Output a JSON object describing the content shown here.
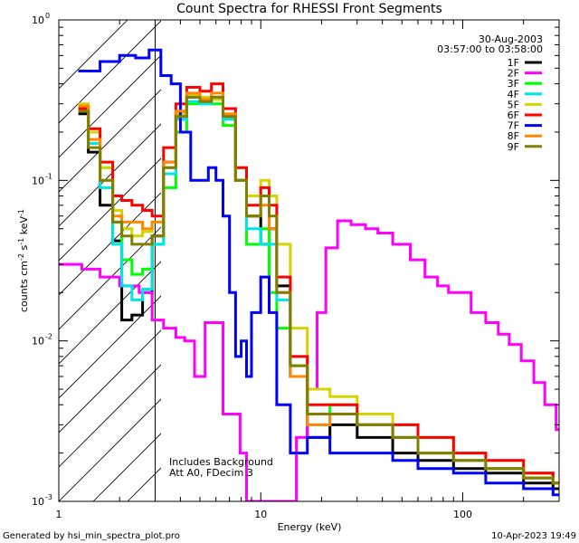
{
  "chart_data": {
    "type": "line",
    "title": "Count Spectra for RHESSI Front Segments",
    "xlabel": "Energy (keV)",
    "ylabel_html": "counts cm<tspan baseline-shift=\"super\" font-size=\"8\">-2</tspan> s<tspan baseline-shift=\"super\" font-size=\"8\">-1</tspan> keV<tspan baseline-shift=\"super\" font-size=\"8\">-1</tspan>",
    "x_scale": "log",
    "y_scale": "log",
    "xlim": [
      1,
      300
    ],
    "ylim": [
      0.001,
      1
    ],
    "x_ticks": [
      {
        "v": 1,
        "label": "1"
      },
      {
        "v": 10,
        "label": "10"
      },
      {
        "v": 100,
        "label": "100"
      }
    ],
    "y_ticks": [
      {
        "v": 1,
        "base": "10",
        "exp": "0"
      },
      {
        "v": 0.1,
        "base": "10",
        "exp": "-1"
      },
      {
        "v": 0.01,
        "base": "10",
        "exp": "-2"
      },
      {
        "v": 0.001,
        "base": "10",
        "exp": "-3"
      }
    ],
    "shaded_region": {
      "x_from": 1,
      "x_to": 3,
      "style": "hatched"
    },
    "annotations": {
      "date": "30-Aug-2003",
      "time_range": "03:57:00 to 03:58:00",
      "note_line1": "Includes Background",
      "note_line2": "Att A0, FDecim 3"
    },
    "footer_left": "Generated by hsi_min_spectra_plot.pro",
    "footer_right": "10-Apr-2023 19:49",
    "legend_position": "top-right",
    "series": [
      {
        "name": "1F",
        "color": "#000000",
        "points": [
          [
            1.25,
            0.26
          ],
          [
            1.4,
            0.15
          ],
          [
            1.6,
            0.07
          ],
          [
            1.85,
            0.042
          ],
          [
            2.05,
            0.0135
          ],
          [
            2.3,
            0.0145
          ],
          [
            2.6,
            0.02
          ],
          [
            2.9,
            0.045
          ],
          [
            3.3,
            0.13
          ],
          [
            3.8,
            0.26
          ],
          [
            4.3,
            0.33
          ],
          [
            5.0,
            0.32
          ],
          [
            5.7,
            0.33
          ],
          [
            6.5,
            0.25
          ],
          [
            7.5,
            0.1
          ],
          [
            8.5,
            0.06
          ],
          [
            10,
            0.04
          ],
          [
            11,
            0.05
          ],
          [
            12,
            0.022
          ],
          [
            14,
            0.006
          ],
          [
            17,
            0.0025
          ],
          [
            22,
            0.003
          ],
          [
            30,
            0.0025
          ],
          [
            45,
            0.002
          ],
          [
            60,
            0.0018
          ],
          [
            90,
            0.0016
          ],
          [
            130,
            0.0015
          ],
          [
            200,
            0.0013
          ],
          [
            280,
            0.0012
          ]
        ]
      },
      {
        "name": "2F",
        "color": "#ff00ff",
        "points": [
          [
            1.0,
            0.03
          ],
          [
            1.3,
            0.028
          ],
          [
            1.6,
            0.025
          ],
          [
            2.0,
            0.022
          ],
          [
            2.5,
            0.02
          ],
          [
            2.9,
            0.0135
          ],
          [
            3.3,
            0.012
          ],
          [
            3.8,
            0.0105
          ],
          [
            4.2,
            0.01
          ],
          [
            4.7,
            0.006
          ],
          [
            5.3,
            0.013
          ],
          [
            5.9,
            0.013
          ],
          [
            6.5,
            0.0035
          ],
          [
            7.2,
            0.0035
          ],
          [
            7.9,
            0.002
          ],
          [
            8.5,
            0.001
          ],
          [
            15,
            0.0025
          ],
          [
            17,
            0.005
          ],
          [
            19,
            0.015
          ],
          [
            21,
            0.038
          ],
          [
            24,
            0.056
          ],
          [
            28,
            0.053
          ],
          [
            33,
            0.05
          ],
          [
            38,
            0.047
          ],
          [
            45,
            0.04
          ],
          [
            55,
            0.032
          ],
          [
            65,
            0.025
          ],
          [
            75,
            0.022
          ],
          [
            85,
            0.02
          ],
          [
            95,
            0.02
          ],
          [
            110,
            0.015
          ],
          [
            130,
            0.013
          ],
          [
            150,
            0.011
          ],
          [
            170,
            0.0095
          ],
          [
            195,
            0.0075
          ],
          [
            225,
            0.0055
          ],
          [
            255,
            0.004
          ],
          [
            290,
            0.0028
          ]
        ]
      },
      {
        "name": "3F",
        "color": "#00ff00",
        "points": [
          [
            1.25,
            0.29
          ],
          [
            1.4,
            0.2
          ],
          [
            1.6,
            0.12
          ],
          [
            1.85,
            0.055
          ],
          [
            2.05,
            0.032
          ],
          [
            2.3,
            0.026
          ],
          [
            2.6,
            0.028
          ],
          [
            2.9,
            0.04
          ],
          [
            3.3,
            0.09
          ],
          [
            3.8,
            0.2
          ],
          [
            4.3,
            0.3
          ],
          [
            5.0,
            0.3
          ],
          [
            5.7,
            0.3
          ],
          [
            6.5,
            0.22
          ],
          [
            7.5,
            0.1
          ],
          [
            8.5,
            0.04
          ],
          [
            10,
            0.05
          ],
          [
            11,
            0.02
          ],
          [
            12,
            0.012
          ],
          [
            14,
            0.007
          ],
          [
            17,
            0.0035
          ],
          [
            22,
            0.004
          ],
          [
            30,
            0.003
          ],
          [
            45,
            0.0025
          ],
          [
            60,
            0.002
          ],
          [
            90,
            0.0018
          ],
          [
            130,
            0.0016
          ],
          [
            200,
            0.0014
          ],
          [
            280,
            0.0013
          ]
        ]
      },
      {
        "name": "4F",
        "color": "#00e5e5",
        "points": [
          [
            1.25,
            0.27
          ],
          [
            1.4,
            0.17
          ],
          [
            1.6,
            0.09
          ],
          [
            1.85,
            0.04
          ],
          [
            2.05,
            0.022
          ],
          [
            2.3,
            0.018
          ],
          [
            2.6,
            0.021
          ],
          [
            2.9,
            0.04
          ],
          [
            3.3,
            0.11
          ],
          [
            3.8,
            0.24
          ],
          [
            4.3,
            0.31
          ],
          [
            5.0,
            0.3
          ],
          [
            5.7,
            0.32
          ],
          [
            6.5,
            0.24
          ],
          [
            7.5,
            0.1
          ],
          [
            8.5,
            0.05
          ],
          [
            10,
            0.04
          ],
          [
            11,
            0.04
          ],
          [
            12,
            0.018
          ],
          [
            14,
            0.006
          ],
          [
            17,
            0.003
          ],
          [
            22,
            0.0035
          ],
          [
            30,
            0.003
          ],
          [
            45,
            0.0025
          ],
          [
            60,
            0.002
          ],
          [
            90,
            0.0018
          ],
          [
            130,
            0.0016
          ],
          [
            200,
            0.0015
          ],
          [
            280,
            0.0013
          ]
        ]
      },
      {
        "name": "5F",
        "color": "#d4d400",
        "points": [
          [
            1.25,
            0.3
          ],
          [
            1.4,
            0.2
          ],
          [
            1.6,
            0.12
          ],
          [
            1.85,
            0.065
          ],
          [
            2.05,
            0.05
          ],
          [
            2.3,
            0.045
          ],
          [
            2.6,
            0.048
          ],
          [
            2.9,
            0.055
          ],
          [
            3.3,
            0.12
          ],
          [
            3.8,
            0.26
          ],
          [
            4.3,
            0.34
          ],
          [
            5.0,
            0.33
          ],
          [
            5.7,
            0.32
          ],
          [
            6.5,
            0.25
          ],
          [
            7.5,
            0.12
          ],
          [
            8.5,
            0.08
          ],
          [
            10,
            0.1
          ],
          [
            11,
            0.08
          ],
          [
            12,
            0.04
          ],
          [
            14,
            0.012
          ],
          [
            17,
            0.005
          ],
          [
            22,
            0.0045
          ],
          [
            30,
            0.0035
          ],
          [
            45,
            0.003
          ],
          [
            60,
            0.0025
          ],
          [
            90,
            0.002
          ],
          [
            130,
            0.0018
          ],
          [
            200,
            0.0015
          ],
          [
            280,
            0.0013
          ]
        ]
      },
      {
        "name": "6F",
        "color": "#ff0000",
        "points": [
          [
            1.25,
            0.28
          ],
          [
            1.4,
            0.21
          ],
          [
            1.6,
            0.13
          ],
          [
            1.85,
            0.08
          ],
          [
            2.05,
            0.075
          ],
          [
            2.3,
            0.07
          ],
          [
            2.6,
            0.065
          ],
          [
            2.9,
            0.06
          ],
          [
            3.3,
            0.16
          ],
          [
            3.8,
            0.3
          ],
          [
            4.3,
            0.38
          ],
          [
            5.0,
            0.36
          ],
          [
            5.7,
            0.4
          ],
          [
            6.5,
            0.28
          ],
          [
            7.5,
            0.12
          ],
          [
            8.5,
            0.07
          ],
          [
            10,
            0.09
          ],
          [
            11,
            0.07
          ],
          [
            12,
            0.025
          ],
          [
            14,
            0.008
          ],
          [
            17,
            0.004
          ],
          [
            22,
            0.004
          ],
          [
            30,
            0.003
          ],
          [
            45,
            0.003
          ],
          [
            60,
            0.0025
          ],
          [
            90,
            0.002
          ],
          [
            130,
            0.0018
          ],
          [
            200,
            0.0015
          ],
          [
            280,
            0.0013
          ]
        ]
      },
      {
        "name": "7F",
        "color": "#0000ff",
        "points": [
          [
            1.25,
            0.48
          ],
          [
            1.6,
            0.55
          ],
          [
            2.0,
            0.6
          ],
          [
            2.4,
            0.58
          ],
          [
            2.8,
            0.65
          ],
          [
            3.2,
            0.45
          ],
          [
            3.6,
            0.4
          ],
          [
            4.0,
            0.2
          ],
          [
            4.5,
            0.1
          ],
          [
            5.0,
            0.1
          ],
          [
            5.5,
            0.12
          ],
          [
            6.0,
            0.1
          ],
          [
            6.5,
            0.06
          ],
          [
            7.0,
            0.02
          ],
          [
            7.5,
            0.008
          ],
          [
            8.0,
            0.01
          ],
          [
            8.5,
            0.006
          ],
          [
            9.0,
            0.015
          ],
          [
            10,
            0.025
          ],
          [
            11,
            0.015
          ],
          [
            12,
            0.004
          ],
          [
            14,
            0.002
          ],
          [
            17,
            0.0025
          ],
          [
            22,
            0.002
          ],
          [
            30,
            0.002
          ],
          [
            45,
            0.0018
          ],
          [
            60,
            0.0016
          ],
          [
            90,
            0.0015
          ],
          [
            130,
            0.0013
          ],
          [
            200,
            0.0012
          ],
          [
            280,
            0.0011
          ]
        ]
      },
      {
        "name": "8F",
        "color": "#ff8800",
        "points": [
          [
            1.25,
            0.29
          ],
          [
            1.4,
            0.18
          ],
          [
            1.6,
            0.1
          ],
          [
            1.85,
            0.06
          ],
          [
            2.05,
            0.055
          ],
          [
            2.3,
            0.055
          ],
          [
            2.6,
            0.05
          ],
          [
            2.9,
            0.055
          ],
          [
            3.3,
            0.13
          ],
          [
            3.8,
            0.27
          ],
          [
            4.3,
            0.35
          ],
          [
            5.0,
            0.32
          ],
          [
            5.7,
            0.35
          ],
          [
            6.5,
            0.26
          ],
          [
            7.5,
            0.1
          ],
          [
            8.5,
            0.06
          ],
          [
            10,
            0.07
          ],
          [
            11,
            0.05
          ],
          [
            12,
            0.02
          ],
          [
            14,
            0.006
          ],
          [
            17,
            0.003
          ],
          [
            22,
            0.0035
          ],
          [
            30,
            0.003
          ],
          [
            45,
            0.0025
          ],
          [
            60,
            0.002
          ],
          [
            90,
            0.0018
          ],
          [
            130,
            0.0016
          ],
          [
            200,
            0.0014
          ],
          [
            280,
            0.0013
          ]
        ]
      },
      {
        "name": "9F",
        "color": "#808000",
        "points": [
          [
            1.25,
            0.27
          ],
          [
            1.4,
            0.16
          ],
          [
            1.6,
            0.1
          ],
          [
            1.85,
            0.055
          ],
          [
            2.05,
            0.045
          ],
          [
            2.3,
            0.04
          ],
          [
            2.6,
            0.04
          ],
          [
            2.9,
            0.045
          ],
          [
            3.3,
            0.12
          ],
          [
            3.8,
            0.25
          ],
          [
            4.3,
            0.33
          ],
          [
            5.0,
            0.31
          ],
          [
            5.7,
            0.33
          ],
          [
            6.5,
            0.25
          ],
          [
            7.5,
            0.1
          ],
          [
            8.5,
            0.06
          ],
          [
            10,
            0.08
          ],
          [
            11,
            0.06
          ],
          [
            12,
            0.02
          ],
          [
            14,
            0.007
          ],
          [
            17,
            0.0035
          ],
          [
            22,
            0.0035
          ],
          [
            30,
            0.003
          ],
          [
            45,
            0.0025
          ],
          [
            60,
            0.002
          ],
          [
            90,
            0.0018
          ],
          [
            130,
            0.0016
          ],
          [
            200,
            0.0014
          ],
          [
            280,
            0.0013
          ]
        ]
      }
    ]
  }
}
